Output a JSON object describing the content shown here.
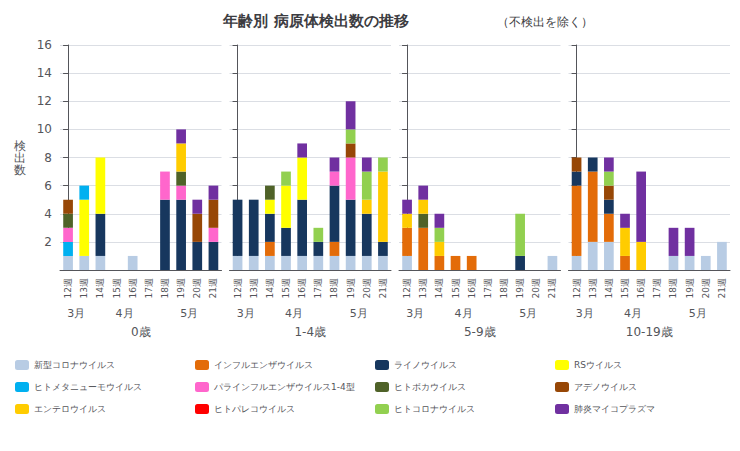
{
  "chart_data": {
    "type": "bar",
    "stacked": true,
    "title": "年齢別 病原体検出数の推移",
    "subtitle": "（不検出を除く）",
    "ylabel": "検\n出\n数",
    "categories": [
      "12週",
      "13週",
      "14週",
      "15週",
      "16週",
      "17週",
      "18週",
      "19週",
      "20週",
      "21週"
    ],
    "category_groups": [
      {
        "label": "3月",
        "categories": [
          "12週",
          "13週"
        ]
      },
      {
        "label": "4月",
        "categories": [
          "14週",
          "15週",
          "16週",
          "17週"
        ]
      },
      {
        "label": "5月",
        "categories": [
          "18週",
          "19週",
          "20週",
          "21週"
        ]
      }
    ],
    "ylim": [
      0,
      16
    ],
    "yticks": [
      2,
      4,
      6,
      8,
      10,
      12,
      14,
      16
    ],
    "grid": true,
    "legend": "bottom",
    "panels": [
      {
        "label": "0歳",
        "series": [
          {
            "name": "新型コロナウイルス",
            "color": "#b8cce4",
            "values": [
              1,
              1,
              1,
              0,
              1,
              0,
              0,
              0,
              0,
              0
            ]
          },
          {
            "name": "インフルエンザウイルス",
            "color": "#e36c09",
            "values": [
              0,
              0,
              0,
              0,
              0,
              0,
              0,
              0,
              0,
              0
            ]
          },
          {
            "name": "ライノウイルス",
            "color": "#17375e",
            "values": [
              0,
              0,
              3,
              0,
              0,
              0,
              5,
              5,
              2,
              2
            ]
          },
          {
            "name": "RSウイルス",
            "color": "#ffff00",
            "values": [
              0,
              4,
              4,
              0,
              0,
              0,
              0,
              0,
              0,
              0
            ]
          },
          {
            "name": "ヒトメタニューモウイルス",
            "color": "#00b0f0",
            "values": [
              1,
              1,
              0,
              0,
              0,
              0,
              0,
              0,
              0,
              0
            ]
          },
          {
            "name": "パラインフルエンザウイルス1-4型",
            "color": "#ff66cc",
            "values": [
              1,
              0,
              0,
              0,
              0,
              0,
              2,
              1,
              0,
              1
            ]
          },
          {
            "name": "ヒトボカウイルス",
            "color": "#4f6228",
            "values": [
              1,
              0,
              0,
              0,
              0,
              0,
              0,
              1,
              0,
              0
            ]
          },
          {
            "name": "アデノウイルス",
            "color": "#974706",
            "values": [
              1,
              0,
              0,
              0,
              0,
              0,
              0,
              0,
              2,
              2
            ]
          },
          {
            "name": "エンテロウイルス",
            "color": "#ffcc00",
            "values": [
              0,
              0,
              0,
              0,
              0,
              0,
              0,
              2,
              0,
              0
            ]
          },
          {
            "name": "ヒトパレコウイルス",
            "color": "#ff0000",
            "values": [
              0,
              0,
              0,
              0,
              0,
              0,
              0,
              0,
              0,
              0
            ]
          },
          {
            "name": "ヒトコロナウイルス",
            "color": "#92d050",
            "values": [
              0,
              0,
              0,
              0,
              0,
              0,
              0,
              0,
              0,
              0
            ]
          },
          {
            "name": "肺炎マイコプラズマ",
            "color": "#7030a0",
            "values": [
              0,
              0,
              0,
              0,
              0,
              0,
              0,
              1,
              1,
              1
            ]
          }
        ]
      },
      {
        "label": "1-4歳",
        "series": [
          {
            "name": "新型コロナウイルス",
            "color": "#b8cce4",
            "values": [
              1,
              1,
              1,
              1,
              1,
              1,
              1,
              1,
              1,
              1
            ]
          },
          {
            "name": "インフルエンザウイルス",
            "color": "#e36c09",
            "values": [
              0,
              0,
              1,
              0,
              0,
              0,
              1,
              0,
              0,
              0
            ]
          },
          {
            "name": "ライノウイルス",
            "color": "#17375e",
            "values": [
              4,
              4,
              2,
              2,
              4,
              1,
              4,
              4,
              3,
              1
            ]
          },
          {
            "name": "RSウイルス",
            "color": "#ffff00",
            "values": [
              0,
              0,
              1,
              3,
              3,
              0,
              0,
              0,
              0,
              0
            ]
          },
          {
            "name": "ヒトメタニューモウイルス",
            "color": "#00b0f0",
            "values": [
              0,
              0,
              0,
              0,
              0,
              0,
              0,
              0,
              0,
              0
            ]
          },
          {
            "name": "パラインフルエンザウイルス1-4型",
            "color": "#ff66cc",
            "values": [
              0,
              0,
              0,
              0,
              0,
              0,
              1,
              3,
              0,
              0
            ]
          },
          {
            "name": "ヒトボカウイルス",
            "color": "#4f6228",
            "values": [
              0,
              0,
              1,
              0,
              0,
              0,
              0,
              0,
              0,
              0
            ]
          },
          {
            "name": "アデノウイルス",
            "color": "#974706",
            "values": [
              0,
              0,
              0,
              0,
              0,
              0,
              0,
              1,
              0,
              0
            ]
          },
          {
            "name": "エンテロウイルス",
            "color": "#ffcc00",
            "values": [
              0,
              0,
              0,
              0,
              0,
              0,
              0,
              0,
              1,
              5
            ]
          },
          {
            "name": "ヒトパレコウイルス",
            "color": "#ff0000",
            "values": [
              0,
              0,
              0,
              0,
              0,
              0,
              0,
              0,
              0,
              0
            ]
          },
          {
            "name": "ヒトコロナウイルス",
            "color": "#92d050",
            "values": [
              0,
              0,
              0,
              1,
              0,
              1,
              0,
              1,
              2,
              1
            ]
          },
          {
            "name": "肺炎マイコプラズマ",
            "color": "#7030a0",
            "values": [
              0,
              0,
              0,
              0,
              1,
              0,
              1,
              2,
              1,
              0
            ]
          }
        ]
      },
      {
        "label": "5-9歳",
        "series": [
          {
            "name": "新型コロナウイルス",
            "color": "#b8cce4",
            "values": [
              1,
              0,
              0,
              0,
              0,
              0,
              0,
              0,
              0,
              1
            ]
          },
          {
            "name": "インフルエンザウイルス",
            "color": "#e36c09",
            "values": [
              2,
              3,
              1,
              1,
              1,
              0,
              0,
              0,
              0,
              0
            ]
          },
          {
            "name": "ライノウイルス",
            "color": "#17375e",
            "values": [
              0,
              0,
              0,
              0,
              0,
              0,
              0,
              1,
              0,
              0
            ]
          },
          {
            "name": "RSウイルス",
            "color": "#ffff00",
            "values": [
              0,
              0,
              0,
              0,
              0,
              0,
              0,
              0,
              0,
              0
            ]
          },
          {
            "name": "ヒトメタニューモウイルス",
            "color": "#00b0f0",
            "values": [
              0,
              0,
              0,
              0,
              0,
              0,
              0,
              0,
              0,
              0
            ]
          },
          {
            "name": "パラインフルエンザウイルス1-4型",
            "color": "#ff66cc",
            "values": [
              0,
              0,
              0,
              0,
              0,
              0,
              0,
              0,
              0,
              0
            ]
          },
          {
            "name": "ヒトボカウイルス",
            "color": "#4f6228",
            "values": [
              0,
              1,
              0,
              0,
              0,
              0,
              0,
              0,
              0,
              0
            ]
          },
          {
            "name": "アデノウイルス",
            "color": "#974706",
            "values": [
              0,
              0,
              0,
              0,
              0,
              0,
              0,
              0,
              0,
              0
            ]
          },
          {
            "name": "エンテロウイルス",
            "color": "#ffcc00",
            "values": [
              1,
              1,
              1,
              0,
              0,
              0,
              0,
              0,
              0,
              0
            ]
          },
          {
            "name": "ヒトパレコウイルス",
            "color": "#ff0000",
            "values": [
              0,
              0,
              0,
              0,
              0,
              0,
              0,
              0,
              0,
              0
            ]
          },
          {
            "name": "ヒトコロナウイルス",
            "color": "#92d050",
            "values": [
              0,
              0,
              1,
              0,
              0,
              0,
              0,
              3,
              0,
              0
            ]
          },
          {
            "name": "肺炎マイコプラズマ",
            "color": "#7030a0",
            "values": [
              1,
              1,
              1,
              0,
              0,
              0,
              0,
              0,
              0,
              0
            ]
          }
        ]
      },
      {
        "label": "10-19歳",
        "series": [
          {
            "name": "新型コロナウイルス",
            "color": "#b8cce4",
            "values": [
              1,
              2,
              2,
              0,
              0,
              0,
              1,
              1,
              1,
              2
            ]
          },
          {
            "name": "インフルエンザウイルス",
            "color": "#e36c09",
            "values": [
              5,
              5,
              2,
              1,
              0,
              0,
              0,
              0,
              0,
              0
            ]
          },
          {
            "name": "ライノウイルス",
            "color": "#17375e",
            "values": [
              1,
              1,
              1,
              0,
              0,
              0,
              0,
              0,
              0,
              0
            ]
          },
          {
            "name": "RSウイルス",
            "color": "#ffff00",
            "values": [
              0,
              0,
              0,
              0,
              0,
              0,
              0,
              0,
              0,
              0
            ]
          },
          {
            "name": "ヒトメタニューモウイルス",
            "color": "#00b0f0",
            "values": [
              0,
              0,
              0,
              0,
              0,
              0,
              0,
              0,
              0,
              0
            ]
          },
          {
            "name": "パラインフルエンザウイルス1-4型",
            "color": "#ff66cc",
            "values": [
              0,
              0,
              0,
              0,
              0,
              0,
              0,
              0,
              0,
              0
            ]
          },
          {
            "name": "ヒトボカウイルス",
            "color": "#4f6228",
            "values": [
              0,
              0,
              0,
              0,
              0,
              0,
              0,
              0,
              0,
              0
            ]
          },
          {
            "name": "アデノウイルス",
            "color": "#974706",
            "values": [
              1,
              0,
              1,
              0,
              0,
              0,
              0,
              0,
              0,
              0
            ]
          },
          {
            "name": "エンテロウイルス",
            "color": "#ffcc00",
            "values": [
              0,
              0,
              0,
              2,
              2,
              0,
              0,
              0,
              0,
              0
            ]
          },
          {
            "name": "ヒトパレコウイルス",
            "color": "#ff0000",
            "values": [
              0,
              0,
              0,
              0,
              0,
              0,
              0,
              0,
              0,
              0
            ]
          },
          {
            "name": "ヒトコロナウイルス",
            "color": "#92d050",
            "values": [
              0,
              0,
              1,
              0,
              0,
              0,
              0,
              0,
              0,
              0
            ]
          },
          {
            "name": "肺炎マイコプラズマ",
            "color": "#7030a0",
            "values": [
              0,
              0,
              1,
              1,
              5,
              0,
              2,
              2,
              0,
              0
            ]
          }
        ]
      }
    ]
  }
}
